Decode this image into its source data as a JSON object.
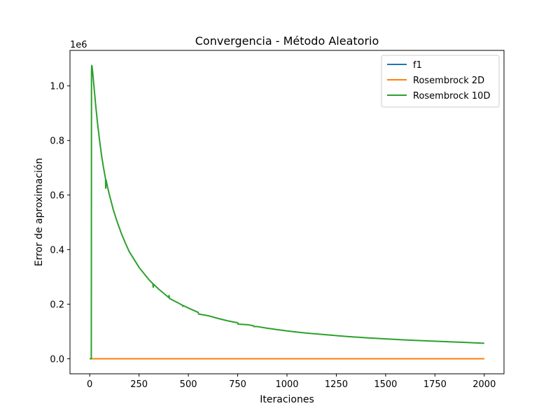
{
  "chart_data": {
    "type": "line",
    "title": "Convergencia - Método Aleatorio",
    "xlabel": "Iteraciones",
    "ylabel": "Error de aproximación",
    "y_offset_label": "1e6",
    "xlim": [
      -100,
      2100
    ],
    "ylim": [
      -0.055,
      1.13
    ],
    "x_ticks": [
      0,
      250,
      500,
      750,
      1000,
      1250,
      1500,
      1750,
      2000
    ],
    "y_ticks": [
      0.0,
      0.2,
      0.4,
      0.6,
      0.8,
      1.0
    ],
    "y_tick_labels": [
      "0.0",
      "0.2",
      "0.4",
      "0.6",
      "0.8",
      "1.0"
    ],
    "grid": false,
    "legend_position": "top-right",
    "series": [
      {
        "name": "f1",
        "color": "#1f77b4",
        "x": [
          0,
          2000
        ],
        "y": [
          0.0,
          0.0
        ]
      },
      {
        "name": "Rosembrock 2D",
        "color": "#ff7f0e",
        "x": [
          0,
          2000
        ],
        "y": [
          0.0,
          0.0
        ]
      },
      {
        "name": "Rosembrock 10D",
        "color": "#2ca02c",
        "x": [
          0,
          8,
          9,
          10,
          12,
          15,
          20,
          30,
          40,
          50,
          60,
          70,
          80,
          81,
          83,
          90,
          100,
          120,
          140,
          160,
          180,
          200,
          250,
          300,
          320,
          322,
          324,
          350,
          400,
          402,
          404,
          450,
          470,
          472,
          474,
          500,
          550,
          552,
          600,
          650,
          700,
          750,
          752,
          800,
          830,
          832,
          850,
          900,
          950,
          1000,
          1050,
          1100,
          1200,
          1300,
          1400,
          1500,
          1600,
          1700,
          1800,
          1900,
          2000
        ],
        "y": [
          0.0,
          0.0,
          1.05,
          1.075,
          1.07,
          1.05,
          1.01,
          0.93,
          0.86,
          0.8,
          0.745,
          0.7,
          0.66,
          0.625,
          0.655,
          0.63,
          0.6,
          0.545,
          0.5,
          0.46,
          0.425,
          0.393,
          0.335,
          0.29,
          0.275,
          0.262,
          0.273,
          0.255,
          0.225,
          0.232,
          0.221,
          0.204,
          0.196,
          0.192,
          0.195,
          0.186,
          0.17,
          0.164,
          0.158,
          0.148,
          0.139,
          0.132,
          0.127,
          0.125,
          0.121,
          0.118,
          0.118,
          0.112,
          0.107,
          0.102,
          0.098,
          0.094,
          0.088,
          0.082,
          0.077,
          0.073,
          0.069,
          0.066,
          0.063,
          0.06,
          0.057
        ]
      }
    ]
  }
}
